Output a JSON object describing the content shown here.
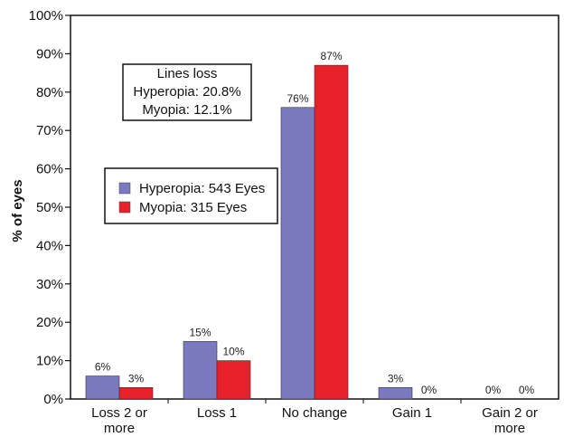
{
  "chart_data": {
    "type": "bar",
    "title": "",
    "xlabel": "",
    "ylabel": "% of eyes",
    "ylim": [
      0,
      100
    ],
    "yticks": [
      "0%",
      "10%",
      "20%",
      "30%",
      "40%",
      "50%",
      "60%",
      "70%",
      "80%",
      "90%",
      "100%"
    ],
    "categories": [
      [
        "Loss 2 or",
        "more"
      ],
      [
        "Loss 1"
      ],
      [
        "No change"
      ],
      [
        "Gain 1"
      ],
      [
        "Gain 2 or",
        "more"
      ]
    ],
    "series": [
      {
        "name": "Hyperopia: 543 Eyes",
        "color": "#7b79c0",
        "values": [
          6,
          15,
          76,
          3,
          0
        ],
        "labels": [
          "6%",
          "15%",
          "76%",
          "3%",
          "0%"
        ]
      },
      {
        "name": "Myopia: 315 Eyes",
        "color": "#e8202a",
        "values": [
          3,
          10,
          87,
          0,
          0
        ],
        "labels": [
          "3%",
          "10%",
          "87%",
          "0%",
          "0%"
        ]
      }
    ],
    "annotation": [
      "Lines loss",
      "Hyperopia: 20.8%",
      "Myopia: 12.1%"
    ],
    "legend_position": "center-left",
    "grid": false
  }
}
